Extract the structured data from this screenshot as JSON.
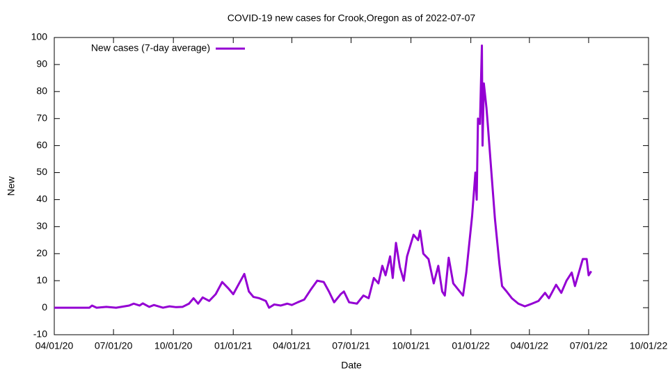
{
  "chart_data": {
    "type": "line",
    "title": "COVID-19 new cases for Crook,Oregon as of 2022-07-07",
    "x_label": "Date",
    "y_label": "New",
    "legend": "top-left",
    "xlim": [
      "2020-04-01",
      "2022-10-01"
    ],
    "xticks": [
      {
        "value": "2020-04-01",
        "label": "04/01/20"
      },
      {
        "value": "2020-07-01",
        "label": "07/01/20"
      },
      {
        "value": "2020-10-01",
        "label": "10/01/20"
      },
      {
        "value": "2021-01-01",
        "label": "01/01/21"
      },
      {
        "value": "2021-04-01",
        "label": "04/01/21"
      },
      {
        "value": "2021-07-01",
        "label": "07/01/21"
      },
      {
        "value": "2021-10-01",
        "label": "10/01/21"
      },
      {
        "value": "2022-01-01",
        "label": "01/01/22"
      },
      {
        "value": "2022-04-01",
        "label": "04/01/22"
      },
      {
        "value": "2022-07-01",
        "label": "07/01/22"
      },
      {
        "value": "2022-10-01",
        "label": "10/01/22"
      }
    ],
    "ylim": [
      -10,
      100
    ],
    "yticks": [
      -10,
      0,
      10,
      20,
      30,
      40,
      50,
      60,
      70,
      80,
      90,
      100
    ],
    "x": [
      "2020-04-01",
      "2020-05-25",
      "2020-05-29",
      "2020-06-05",
      "2020-06-20",
      "2020-07-05",
      "2020-07-25",
      "2020-08-01",
      "2020-08-10",
      "2020-08-15",
      "2020-08-25",
      "2020-09-01",
      "2020-09-15",
      "2020-09-25",
      "2020-10-05",
      "2020-10-15",
      "2020-10-25",
      "2020-11-01",
      "2020-11-08",
      "2020-11-15",
      "2020-11-25",
      "2020-12-05",
      "2020-12-15",
      "2020-12-25",
      "2021-01-01",
      "2021-01-10",
      "2021-01-18",
      "2021-01-25",
      "2021-02-01",
      "2021-02-10",
      "2021-02-20",
      "2021-02-25",
      "2021-03-05",
      "2021-03-15",
      "2021-03-25",
      "2021-04-01",
      "2021-04-10",
      "2021-04-20",
      "2021-05-01",
      "2021-05-10",
      "2021-05-20",
      "2021-05-28",
      "2021-06-05",
      "2021-06-15",
      "2021-06-20",
      "2021-06-28",
      "2021-07-10",
      "2021-07-20",
      "2021-07-28",
      "2021-08-05",
      "2021-08-12",
      "2021-08-18",
      "2021-08-23",
      "2021-08-30",
      "2021-09-03",
      "2021-09-08",
      "2021-09-14",
      "2021-09-20",
      "2021-09-25",
      "2021-10-05",
      "2021-10-12",
      "2021-10-15",
      "2021-10-20",
      "2021-10-28",
      "2021-11-05",
      "2021-11-12",
      "2021-11-18",
      "2021-11-22",
      "2021-11-28",
      "2021-12-05",
      "2021-12-15",
      "2021-12-20",
      "2021-12-25",
      "2022-01-03",
      "2022-01-08",
      "2022-01-10",
      "2022-01-12",
      "2022-01-15",
      "2022-01-18",
      "2022-01-19",
      "2022-01-21",
      "2022-01-25",
      "2022-01-27",
      "2022-02-01",
      "2022-02-07",
      "2022-02-14",
      "2022-02-18",
      "2022-02-25",
      "2022-03-05",
      "2022-03-15",
      "2022-03-25",
      "2022-04-05",
      "2022-04-15",
      "2022-04-25",
      "2022-05-01",
      "2022-05-12",
      "2022-05-20",
      "2022-05-28",
      "2022-06-05",
      "2022-06-10",
      "2022-06-22",
      "2022-06-28",
      "2022-07-01",
      "2022-07-05"
    ],
    "series": [
      {
        "name": "New cases (7-day average)",
        "color": "#9400d3",
        "values": [
          0,
          0,
          0.8,
          0,
          0.3,
          0,
          0.8,
          1.5,
          0.8,
          1.6,
          0.3,
          1.0,
          0,
          0.5,
          0.2,
          0.3,
          1.5,
          3.5,
          1.5,
          3.8,
          2.5,
          5,
          9.5,
          7,
          5,
          9,
          12.5,
          6,
          4,
          3.5,
          2.5,
          0,
          1.2,
          0.8,
          1.5,
          1.0,
          2,
          3,
          7,
          10,
          9.5,
          6,
          2,
          5,
          6,
          2,
          1.5,
          4.5,
          3.5,
          11,
          9,
          15.5,
          12,
          19,
          11,
          24,
          15,
          10,
          19,
          27,
          25,
          28.5,
          20,
          18,
          9,
          15.5,
          6,
          4.5,
          18.5,
          9,
          6,
          4.5,
          13,
          34,
          50,
          40,
          70,
          68,
          97,
          60,
          83,
          74,
          68,
          52,
          33,
          16,
          8,
          6,
          3.5,
          1.5,
          0.5,
          1.5,
          2.5,
          5.5,
          3.5,
          8.5,
          5.5,
          10,
          13,
          8,
          18,
          18,
          12,
          13.5
        ]
      }
    ]
  }
}
